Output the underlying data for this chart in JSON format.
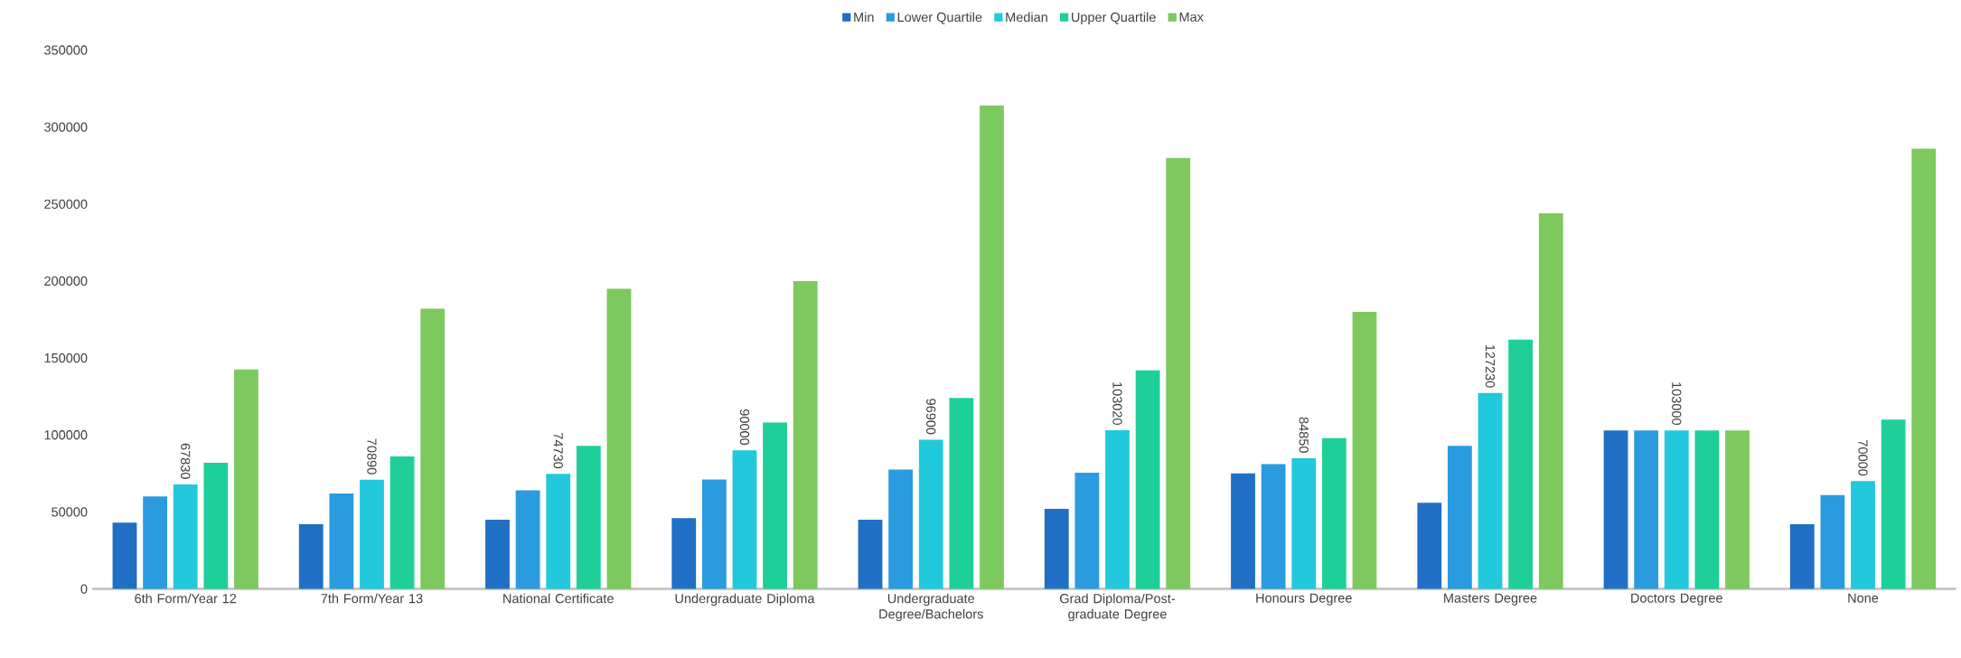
{
  "chart_data": {
    "type": "bar",
    "categories": [
      "6th Form/Year 12",
      "7th Form/Year 13",
      "National Certificate",
      "Undergraduate Diploma",
      "Undergraduate Degree/Bachelors",
      "Grad Diploma/Post-graduate Degree",
      "Honours Degree",
      "Masters Degree",
      "Doctors Degree",
      "None"
    ],
    "series": [
      {
        "name": "Min",
        "color": "#1f6fc5",
        "values": [
          43000,
          42000,
          45000,
          46000,
          45000,
          52000,
          75000,
          56000,
          103000,
          42000
        ]
      },
      {
        "name": "Lower Quartile",
        "color": "#2b9be0",
        "values": [
          60000,
          62000,
          64000,
          71000,
          77500,
          75500,
          81000,
          93000,
          103000,
          61000
        ]
      },
      {
        "name": "Median",
        "color": "#22c9dc",
        "values": [
          67830,
          70890,
          74730,
          90000,
          96900,
          103020,
          84850,
          127230,
          103000,
          70000
        ],
        "value_labels": [
          "67830",
          "70890",
          "74730",
          "90000",
          "96900",
          "103020",
          "84850",
          "127230",
          "103000",
          "70000"
        ]
      },
      {
        "name": "Upper Quartile",
        "color": "#1fcf9a",
        "values": [
          82000,
          86000,
          93000,
          108000,
          124000,
          142000,
          98000,
          162000,
          103000,
          110000
        ]
      },
      {
        "name": "Max",
        "color": "#7dc95e",
        "values": [
          142500,
          182000,
          195000,
          200000,
          314000,
          280000,
          180000,
          244000,
          103000,
          286000
        ]
      }
    ],
    "ylim": [
      0,
      350000
    ],
    "yticks": [
      0,
      50000,
      100000,
      150000,
      200000,
      250000,
      300000,
      350000
    ],
    "legend": "top",
    "grid": false
  }
}
